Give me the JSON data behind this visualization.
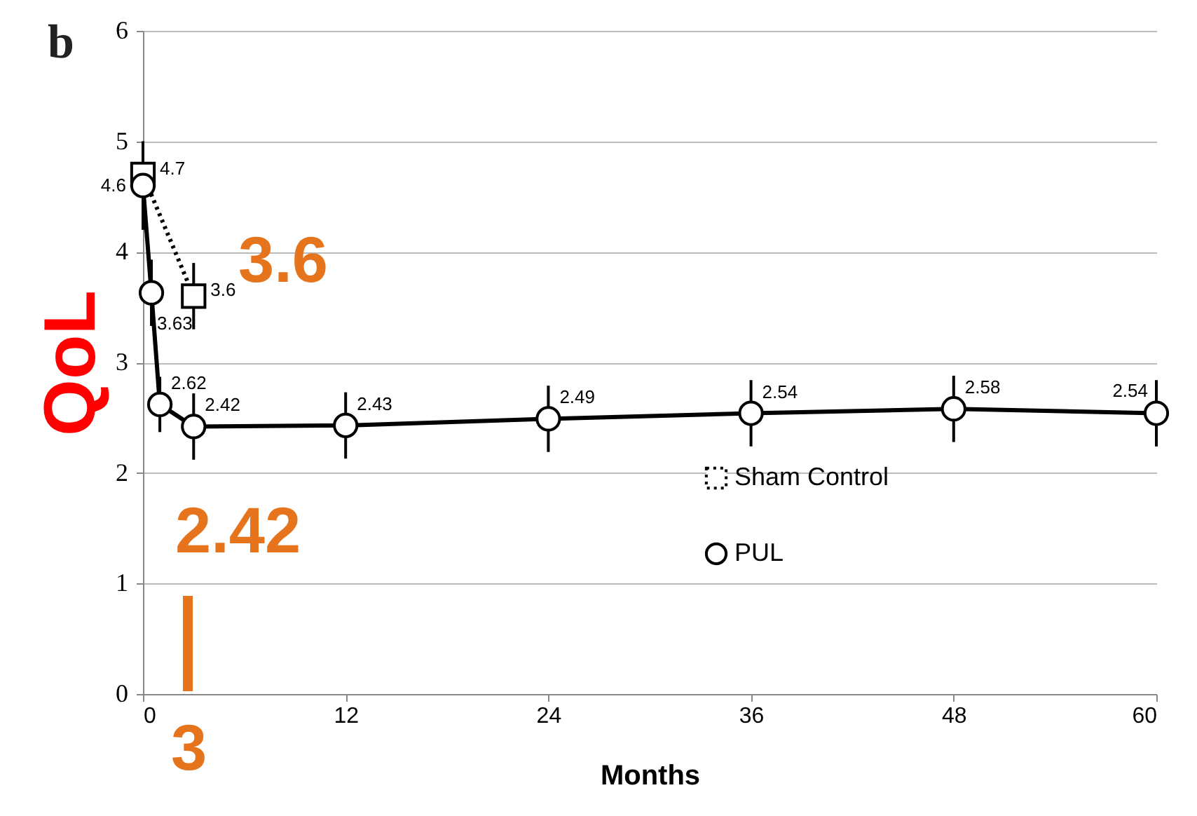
{
  "chart_data": {
    "type": "line",
    "xlabel": "Months",
    "ylabel": "QoL",
    "annotations": [
      "b",
      "3.6",
      "2.42",
      "3"
    ],
    "xlim": [
      0,
      60
    ],
    "xticks": [
      0,
      12,
      24,
      36,
      48,
      60
    ],
    "ylim": [
      0,
      6
    ],
    "yticks": [
      0,
      1,
      2,
      3,
      4,
      5,
      6
    ],
    "grid": "y",
    "legend": "bottom right",
    "data_labels": true,
    "series": [
      {
        "name": "Sham Control",
        "color": "#000000",
        "marker": "square",
        "line_style": "dotted",
        "x": [
          0,
          3
        ],
        "values": [
          4.7,
          3.6
        ],
        "errors": [
          0.3,
          0.3
        ]
      },
      {
        "name": "PUL",
        "color": "#000000",
        "marker": "circle",
        "line_style": "solid",
        "x": [
          0,
          0.5,
          1,
          3,
          12,
          24,
          36,
          48,
          60
        ],
        "values": [
          4.6,
          3.63,
          2.62,
          2.42,
          2.43,
          2.49,
          2.54,
          2.58,
          2.54
        ],
        "errors": [
          0.4,
          0.3,
          0.25,
          0.3,
          0.3,
          0.3,
          0.3,
          0.3,
          0.3
        ]
      }
    ]
  }
}
